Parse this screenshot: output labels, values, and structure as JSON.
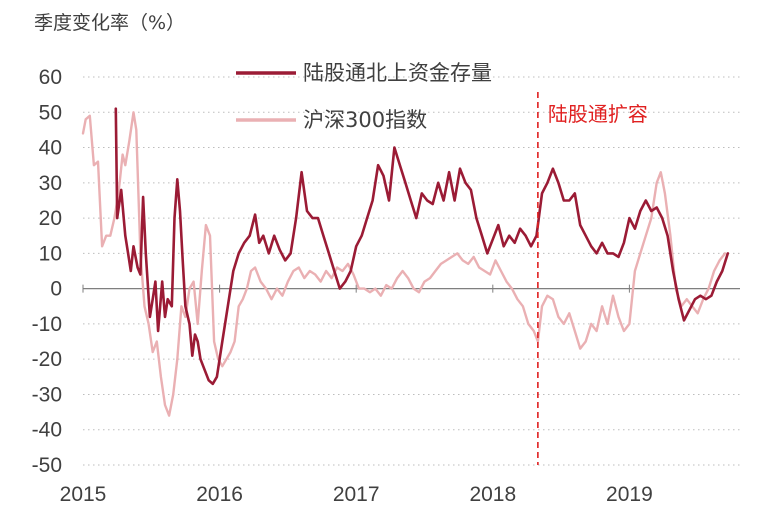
{
  "chart_data": {
    "type": "line",
    "ylabel": "季度变化率（%）",
    "ylim": [
      -50,
      60
    ],
    "yticks": [
      60,
      50,
      40,
      30,
      20,
      10,
      0,
      -10,
      -20,
      -30,
      -40,
      -50
    ],
    "xticks": [
      2015,
      2016,
      2017,
      2018,
      2019
    ],
    "xlim": [
      2015.0,
      2019.8
    ],
    "grid": "horizontal dotted",
    "legend_position": "top-center",
    "annotation": {
      "label": "陆股通扩容",
      "x": 2018.33,
      "color": "#e02020"
    },
    "series": [
      {
        "name": "陆股通北上资金存量",
        "color": "#9b1b35",
        "points": [
          [
            2015.24,
            51
          ],
          [
            2015.25,
            20
          ],
          [
            2015.28,
            28
          ],
          [
            2015.31,
            15
          ],
          [
            2015.33,
            10
          ],
          [
            2015.35,
            5
          ],
          [
            2015.37,
            12
          ],
          [
            2015.4,
            6
          ],
          [
            2015.42,
            4
          ],
          [
            2015.44,
            26
          ],
          [
            2015.46,
            10
          ],
          [
            2015.49,
            -8
          ],
          [
            2015.51,
            -3
          ],
          [
            2015.53,
            2
          ],
          [
            2015.55,
            -12
          ],
          [
            2015.58,
            2
          ],
          [
            2015.6,
            -8
          ],
          [
            2015.62,
            -3
          ],
          [
            2015.65,
            -5
          ],
          [
            2015.67,
            20
          ],
          [
            2015.69,
            31
          ],
          [
            2015.71,
            22
          ],
          [
            2015.73,
            8
          ],
          [
            2015.75,
            -5
          ],
          [
            2015.78,
            -10
          ],
          [
            2015.8,
            -19
          ],
          [
            2015.82,
            -13
          ],
          [
            2015.84,
            -15
          ],
          [
            2015.86,
            -20
          ],
          [
            2015.88,
            -22
          ],
          [
            2015.92,
            -26
          ],
          [
            2015.95,
            -27
          ],
          [
            2015.98,
            -25
          ],
          [
            2016.02,
            -15
          ],
          [
            2016.06,
            -5
          ],
          [
            2016.1,
            5
          ],
          [
            2016.14,
            10
          ],
          [
            2016.18,
            13
          ],
          [
            2016.22,
            15
          ],
          [
            2016.26,
            21
          ],
          [
            2016.29,
            13
          ],
          [
            2016.32,
            15
          ],
          [
            2016.36,
            10
          ],
          [
            2016.4,
            15
          ],
          [
            2016.44,
            11
          ],
          [
            2016.48,
            8
          ],
          [
            2016.52,
            10
          ],
          [
            2016.56,
            20
          ],
          [
            2016.6,
            33
          ],
          [
            2016.64,
            22
          ],
          [
            2016.68,
            20
          ],
          [
            2016.72,
            20
          ],
          [
            2016.76,
            15
          ],
          [
            2016.8,
            10
          ],
          [
            2016.84,
            5
          ],
          [
            2016.88,
            0
          ],
          [
            2016.92,
            2
          ],
          [
            2016.96,
            5
          ],
          [
            2017.0,
            12
          ],
          [
            2017.04,
            15
          ],
          [
            2017.08,
            20
          ],
          [
            2017.12,
            25
          ],
          [
            2017.16,
            35
          ],
          [
            2017.2,
            32
          ],
          [
            2017.24,
            25
          ],
          [
            2017.28,
            40
          ],
          [
            2017.32,
            35
          ],
          [
            2017.36,
            30
          ],
          [
            2017.4,
            25
          ],
          [
            2017.44,
            20
          ],
          [
            2017.48,
            27
          ],
          [
            2017.52,
            25
          ],
          [
            2017.56,
            24
          ],
          [
            2017.6,
            30
          ],
          [
            2017.64,
            25
          ],
          [
            2017.68,
            33
          ],
          [
            2017.72,
            25
          ],
          [
            2017.76,
            34
          ],
          [
            2017.8,
            30
          ],
          [
            2017.84,
            28
          ],
          [
            2017.88,
            20
          ],
          [
            2017.92,
            15
          ],
          [
            2017.96,
            10
          ],
          [
            2018.0,
            14
          ],
          [
            2018.04,
            18
          ],
          [
            2018.08,
            12
          ],
          [
            2018.12,
            15
          ],
          [
            2018.16,
            13
          ],
          [
            2018.2,
            17
          ],
          [
            2018.24,
            15
          ],
          [
            2018.28,
            12
          ],
          [
            2018.32,
            15
          ],
          [
            2018.36,
            27
          ],
          [
            2018.4,
            30
          ],
          [
            2018.44,
            34
          ],
          [
            2018.48,
            30
          ],
          [
            2018.52,
            25
          ],
          [
            2018.56,
            25
          ],
          [
            2018.6,
            27
          ],
          [
            2018.64,
            18
          ],
          [
            2018.68,
            15
          ],
          [
            2018.72,
            12
          ],
          [
            2018.76,
            10
          ],
          [
            2018.8,
            13
          ],
          [
            2018.84,
            10
          ],
          [
            2018.88,
            10
          ],
          [
            2018.92,
            9
          ],
          [
            2018.96,
            13
          ],
          [
            2019.0,
            20
          ],
          [
            2019.04,
            17
          ],
          [
            2019.08,
            22
          ],
          [
            2019.12,
            25
          ],
          [
            2019.16,
            22
          ],
          [
            2019.2,
            23
          ],
          [
            2019.24,
            20
          ],
          [
            2019.28,
            15
          ],
          [
            2019.32,
            5
          ],
          [
            2019.36,
            -3
          ],
          [
            2019.4,
            -9
          ],
          [
            2019.44,
            -6
          ],
          [
            2019.48,
            -3
          ],
          [
            2019.52,
            -2
          ],
          [
            2019.56,
            -3
          ],
          [
            2019.6,
            -2
          ],
          [
            2019.64,
            2
          ],
          [
            2019.68,
            5
          ],
          [
            2019.72,
            10
          ]
        ]
      },
      {
        "name": "沪深300指数",
        "color": "#eab0b3",
        "points": [
          [
            2015.0,
            44
          ],
          [
            2015.02,
            48
          ],
          [
            2015.05,
            49
          ],
          [
            2015.08,
            35
          ],
          [
            2015.11,
            36
          ],
          [
            2015.14,
            12
          ],
          [
            2015.17,
            15
          ],
          [
            2015.2,
            15
          ],
          [
            2015.23,
            20
          ],
          [
            2015.26,
            27
          ],
          [
            2015.29,
            38
          ],
          [
            2015.31,
            35
          ],
          [
            2015.34,
            42
          ],
          [
            2015.37,
            50
          ],
          [
            2015.39,
            45
          ],
          [
            2015.42,
            10
          ],
          [
            2015.45,
            -5
          ],
          [
            2015.48,
            -10
          ],
          [
            2015.51,
            -18
          ],
          [
            2015.54,
            -15
          ],
          [
            2015.57,
            -25
          ],
          [
            2015.6,
            -33
          ],
          [
            2015.63,
            -36
          ],
          [
            2015.66,
            -30
          ],
          [
            2015.69,
            -20
          ],
          [
            2015.72,
            -5
          ],
          [
            2015.75,
            -8
          ],
          [
            2015.78,
            0
          ],
          [
            2015.81,
            2
          ],
          [
            2015.84,
            -10
          ],
          [
            2015.87,
            5
          ],
          [
            2015.9,
            18
          ],
          [
            2015.93,
            15
          ],
          [
            2015.96,
            -15
          ],
          [
            2015.99,
            -20
          ],
          [
            2016.02,
            -22
          ],
          [
            2016.05,
            -20
          ],
          [
            2016.08,
            -18
          ],
          [
            2016.11,
            -15
          ],
          [
            2016.14,
            -5
          ],
          [
            2016.17,
            -3
          ],
          [
            2016.2,
            0
          ],
          [
            2016.23,
            5
          ],
          [
            2016.26,
            6
          ],
          [
            2016.3,
            2
          ],
          [
            2016.34,
            0
          ],
          [
            2016.38,
            -3
          ],
          [
            2016.42,
            0
          ],
          [
            2016.46,
            -2
          ],
          [
            2016.5,
            2
          ],
          [
            2016.54,
            5
          ],
          [
            2016.58,
            6
          ],
          [
            2016.62,
            3
          ],
          [
            2016.66,
            5
          ],
          [
            2016.7,
            4
          ],
          [
            2016.74,
            2
          ],
          [
            2016.78,
            5
          ],
          [
            2016.82,
            3
          ],
          [
            2016.86,
            6
          ],
          [
            2016.9,
            5
          ],
          [
            2016.94,
            7
          ],
          [
            2016.98,
            4
          ],
          [
            2017.02,
            0
          ],
          [
            2017.06,
            0
          ],
          [
            2017.1,
            -1
          ],
          [
            2017.14,
            0
          ],
          [
            2017.18,
            -2
          ],
          [
            2017.22,
            1
          ],
          [
            2017.26,
            0
          ],
          [
            2017.3,
            3
          ],
          [
            2017.34,
            5
          ],
          [
            2017.38,
            3
          ],
          [
            2017.42,
            0
          ],
          [
            2017.46,
            -1
          ],
          [
            2017.5,
            2
          ],
          [
            2017.54,
            3
          ],
          [
            2017.58,
            5
          ],
          [
            2017.62,
            7
          ],
          [
            2017.66,
            8
          ],
          [
            2017.7,
            9
          ],
          [
            2017.74,
            10
          ],
          [
            2017.78,
            8
          ],
          [
            2017.82,
            7
          ],
          [
            2017.86,
            9
          ],
          [
            2017.9,
            6
          ],
          [
            2017.94,
            5
          ],
          [
            2017.98,
            4
          ],
          [
            2018.02,
            8
          ],
          [
            2018.06,
            5
          ],
          [
            2018.1,
            2
          ],
          [
            2018.14,
            0
          ],
          [
            2018.18,
            -3
          ],
          [
            2018.22,
            -5
          ],
          [
            2018.26,
            -10
          ],
          [
            2018.3,
            -12
          ],
          [
            2018.33,
            -15
          ],
          [
            2018.36,
            -5
          ],
          [
            2018.4,
            -2
          ],
          [
            2018.44,
            -3
          ],
          [
            2018.48,
            -8
          ],
          [
            2018.52,
            -10
          ],
          [
            2018.56,
            -7
          ],
          [
            2018.6,
            -12
          ],
          [
            2018.64,
            -17
          ],
          [
            2018.68,
            -15
          ],
          [
            2018.72,
            -10
          ],
          [
            2018.76,
            -12
          ],
          [
            2018.8,
            -5
          ],
          [
            2018.84,
            -10
          ],
          [
            2018.88,
            -2
          ],
          [
            2018.92,
            -8
          ],
          [
            2018.96,
            -12
          ],
          [
            2019.0,
            -10
          ],
          [
            2019.04,
            5
          ],
          [
            2019.08,
            10
          ],
          [
            2019.12,
            15
          ],
          [
            2019.16,
            20
          ],
          [
            2019.2,
            30
          ],
          [
            2019.23,
            33
          ],
          [
            2019.26,
            27
          ],
          [
            2019.3,
            15
          ],
          [
            2019.34,
            0
          ],
          [
            2019.38,
            -5
          ],
          [
            2019.42,
            -3
          ],
          [
            2019.46,
            -5
          ],
          [
            2019.5,
            -7
          ],
          [
            2019.54,
            -3
          ],
          [
            2019.58,
            0
          ],
          [
            2019.62,
            5
          ],
          [
            2019.66,
            8
          ],
          [
            2019.7,
            10
          ]
        ]
      }
    ]
  }
}
